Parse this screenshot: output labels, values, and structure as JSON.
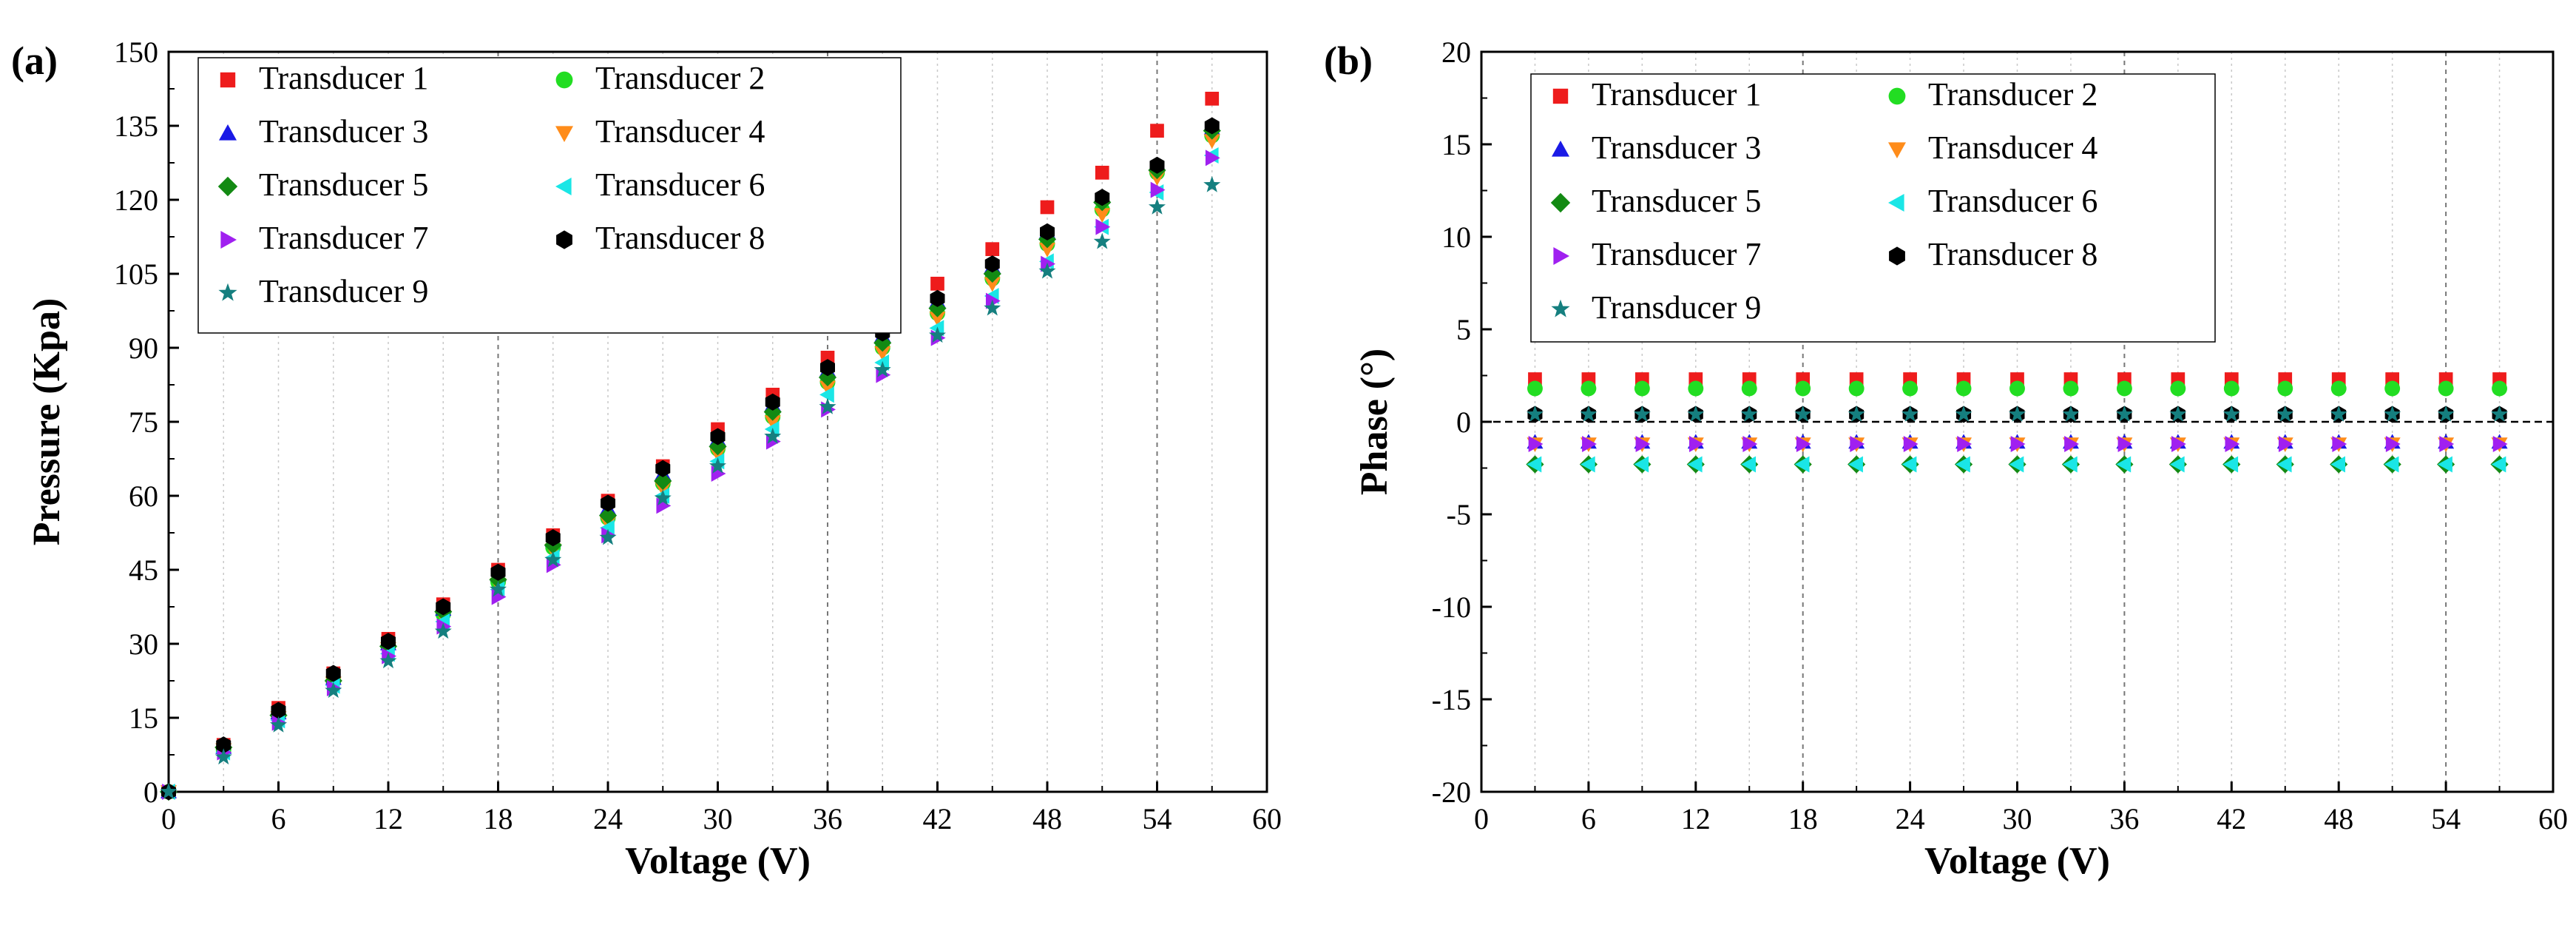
{
  "chart_data": [
    {
      "panel": "(a)",
      "type": "scatter",
      "xlabel": "Voltage (V)",
      "ylabel": "Pressure (Kpa)",
      "xlim": [
        0,
        60
      ],
      "ylim": [
        0,
        150
      ],
      "xticks": [
        0,
        6,
        12,
        18,
        24,
        30,
        36,
        42,
        48,
        54,
        60
      ],
      "yticks": [
        0,
        15,
        30,
        45,
        60,
        75,
        90,
        105,
        120,
        135,
        150
      ],
      "x": [
        0,
        3,
        6,
        9,
        12,
        15,
        18,
        21,
        24,
        27,
        30,
        33,
        36,
        39,
        42,
        45,
        48,
        51,
        54,
        57
      ],
      "legend_position": "top-left",
      "series": [
        {
          "name": "Transducer 1",
          "marker": "square",
          "color": "#ee1c1c",
          "values": [
            0,
            9.5,
            17,
            24,
            31,
            38,
            45,
            52,
            59,
            66,
            73.5,
            80.5,
            88,
            95,
            103,
            110,
            118.5,
            125.5,
            134,
            140.5
          ]
        },
        {
          "name": "Transducer 2",
          "marker": "circle",
          "color": "#22dd22",
          "values": [
            0,
            8.5,
            15.5,
            22.5,
            29.5,
            36,
            42.5,
            49.5,
            55.5,
            62.5,
            69.5,
            76,
            83,
            90,
            97,
            104,
            111,
            118,
            125.5,
            133
          ]
        },
        {
          "name": "Transducer 3",
          "marker": "triangle-up",
          "color": "#1a1ae6",
          "values": [
            0,
            9,
            16,
            23,
            30,
            37,
            44,
            51,
            57.5,
            64.5,
            71.5,
            78.5,
            85.5,
            92.5,
            99.5,
            106.5,
            113.5,
            120.5,
            127,
            134.5
          ]
        },
        {
          "name": "Transducer 4",
          "marker": "triangle-down",
          "color": "#ff8c1a",
          "values": [
            0,
            8.5,
            15,
            22,
            29,
            35.5,
            42,
            49,
            54.5,
            61.5,
            68.5,
            75,
            82,
            89,
            96,
            103,
            110,
            117,
            124.5,
            132
          ]
        },
        {
          "name": "Transducer 5",
          "marker": "diamond",
          "color": "#138a13",
          "values": [
            0,
            9,
            15.5,
            22.5,
            29.5,
            36.5,
            43,
            50,
            56,
            63,
            70,
            77,
            84,
            91,
            98,
            105,
            112,
            119.5,
            126,
            134
          ]
        },
        {
          "name": "Transducer 6",
          "marker": "triangle-left",
          "color": "#1ae6e6",
          "values": [
            0,
            8,
            14.5,
            21.5,
            28,
            34.5,
            41,
            47.5,
            53.5,
            60,
            67,
            73.5,
            80.5,
            87,
            94,
            100.5,
            107.5,
            114.5,
            121.5,
            129
          ]
        },
        {
          "name": "Transducer 7",
          "marker": "triangle-right",
          "color": "#a020f0",
          "values": [
            0,
            8,
            14,
            21,
            27.5,
            33.5,
            39.5,
            46,
            52,
            58,
            64.5,
            71,
            77.5,
            84.5,
            92,
            99.5,
            107,
            114.5,
            122,
            128.5
          ]
        },
        {
          "name": "Transducer 8",
          "marker": "hexagon",
          "color": "#000000",
          "values": [
            0,
            9.5,
            16.5,
            24,
            30.5,
            37.5,
            44.5,
            51.5,
            58.5,
            65.5,
            72,
            79,
            86,
            93,
            100,
            107,
            113.5,
            120.5,
            127,
            135
          ]
        },
        {
          "name": "Transducer 9",
          "marker": "star",
          "color": "#157f7f",
          "values": [
            0,
            7,
            13.5,
            20.5,
            26.5,
            32.5,
            41,
            47,
            51.5,
            59.5,
            66,
            72,
            78,
            85.5,
            92.5,
            98,
            105.5,
            111.5,
            118.5,
            123
          ]
        }
      ]
    },
    {
      "panel": "(b)",
      "type": "scatter",
      "xlabel": "Voltage (V)",
      "ylabel": "Phase (°)",
      "xlim": [
        0,
        60
      ],
      "ylim": [
        -20,
        20
      ],
      "xticks": [
        0,
        6,
        12,
        18,
        24,
        30,
        36,
        42,
        48,
        54,
        60
      ],
      "yticks": [
        -20,
        -15,
        -10,
        -5,
        0,
        5,
        10,
        15,
        20
      ],
      "x": [
        3,
        6,
        9,
        12,
        15,
        18,
        21,
        24,
        27,
        30,
        33,
        36,
        39,
        42,
        45,
        48,
        51,
        54,
        57
      ],
      "reference_line_y": 0,
      "legend_position": "top-left",
      "series": [
        {
          "name": "Transducer 1",
          "marker": "square",
          "color": "#ee1c1c",
          "constant_value": 2.3
        },
        {
          "name": "Transducer 2",
          "marker": "circle",
          "color": "#22dd22",
          "constant_value": 1.8
        },
        {
          "name": "Transducer 3",
          "marker": "triangle-up",
          "color": "#1a1ae6",
          "constant_value": -1.1
        },
        {
          "name": "Transducer 4",
          "marker": "triangle-down",
          "color": "#ff8c1a",
          "constant_value": -1.2
        },
        {
          "name": "Transducer 5",
          "marker": "diamond",
          "color": "#138a13",
          "constant_value": -2.3
        },
        {
          "name": "Transducer 6",
          "marker": "triangle-left",
          "color": "#1ae6e6",
          "constant_value": -2.3
        },
        {
          "name": "Transducer 7",
          "marker": "triangle-right",
          "color": "#a020f0",
          "constant_value": -1.2
        },
        {
          "name": "Transducer 8",
          "marker": "hexagon",
          "color": "#000000",
          "constant_value": 0.4
        },
        {
          "name": "Transducer 9",
          "marker": "star",
          "color": "#157f7f",
          "constant_value": 0.4
        }
      ]
    }
  ]
}
